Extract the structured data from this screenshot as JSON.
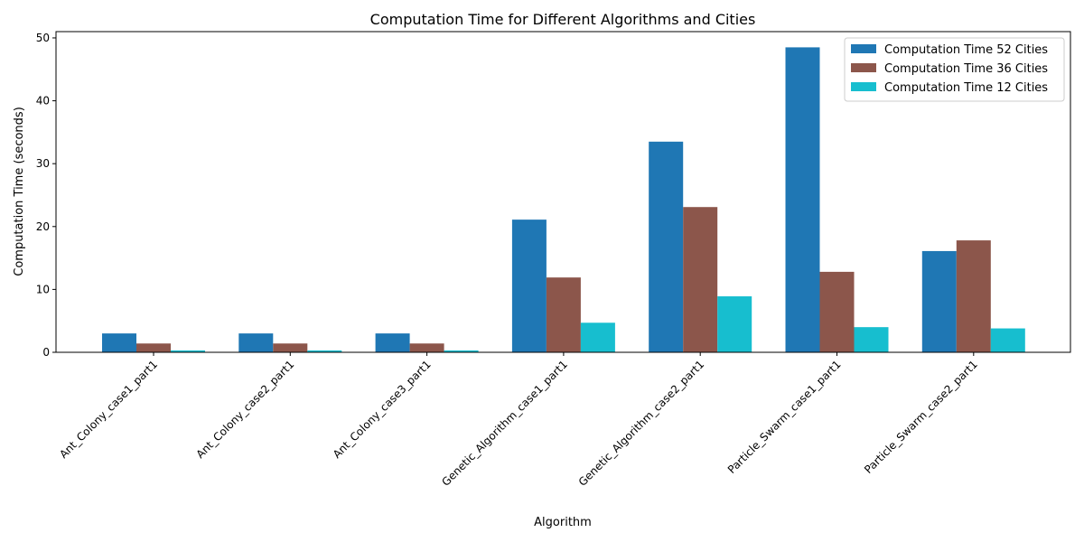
{
  "chart_data": {
    "type": "bar",
    "title": "Computation Time for Different Algorithms and Cities",
    "xlabel": "Algorithm",
    "ylabel": "Computation Time (seconds)",
    "ylim": [
      0,
      51
    ],
    "yticks": [
      0,
      10,
      20,
      30,
      40,
      50
    ],
    "grid": false,
    "legend_position": "top-right",
    "categories": [
      "Ant_Colony_case1_part1",
      "Ant_Colony_case2_part1",
      "Ant_Colony_case3_part1",
      "Genetic_Algorithm_case1_part1",
      "Genetic_Algorithm_case2_part1",
      "Particle_Swarm_case1_part1",
      "Particle_Swarm_case2_part1"
    ],
    "series": [
      {
        "name": "Computation Time 52 Cities",
        "color": "#1f77b4",
        "values": [
          3.0,
          3.0,
          3.0,
          21.1,
          33.5,
          48.5,
          16.1
        ]
      },
      {
        "name": "Computation Time 36 Cities",
        "color": "#8c564b",
        "values": [
          1.4,
          1.4,
          1.4,
          11.9,
          23.1,
          12.8,
          17.8
        ]
      },
      {
        "name": "Computation Time 12 Cities",
        "color": "#17becf",
        "values": [
          0.3,
          0.3,
          0.3,
          4.7,
          8.9,
          4.0,
          3.8
        ]
      }
    ]
  }
}
